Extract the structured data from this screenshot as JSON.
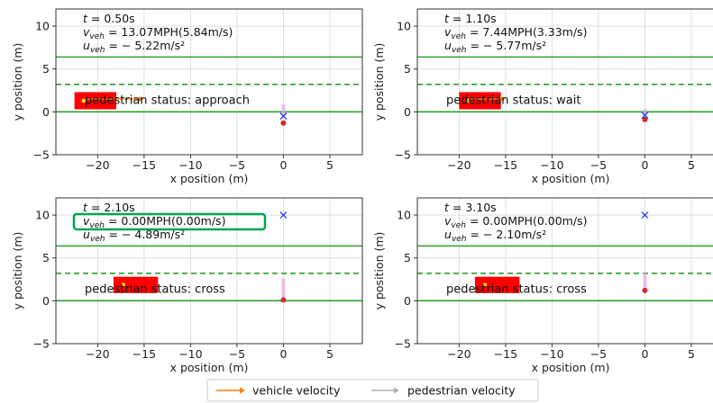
{
  "chart_data": [
    {
      "type": "scatter",
      "annotation": {
        "t": "t = 0.50s",
        "v": "v_veh = 13.07MPH(5.84m/s)",
        "u": "u_veh = − 5.22m/s²"
      },
      "status": "pedestrian status: approach",
      "xlabel": "x position (m)",
      "ylabel": "y position (m)",
      "xlim": [
        -24.5,
        8.5
      ],
      "ylim": [
        -5,
        12
      ],
      "xticks": [
        -20,
        -15,
        -10,
        -5,
        0,
        5
      ],
      "yticks": [
        -5,
        0,
        5,
        10
      ],
      "lane_lines_solid": [
        0,
        6.4
      ],
      "lane_line_dashed": 3.2,
      "vehicle": {
        "x_min": -22.5,
        "x_max": -18,
        "y_min": 0.3,
        "y_max": 2.3
      },
      "vehicle_velocity_arrow": {
        "x_start": -21.5,
        "x_end": -15,
        "y": 1.5
      },
      "pedestrian": {
        "x": 0,
        "y": -1.3
      },
      "pedestrian_goal": {
        "x": 0,
        "y": -0.5
      },
      "pedestrian_trail": {
        "x": 0,
        "y_from": 0.9,
        "y_to": -0.5
      },
      "highlight_velocity": false
    },
    {
      "type": "scatter",
      "annotation": {
        "t": "t = 1.10s",
        "v": "v_veh = 7.44MPH(3.33m/s)",
        "u": "u_veh = − 5.77m/s²"
      },
      "status": "pedestrian status: wait",
      "xlabel": "x position (m)",
      "ylabel": "y position (m)",
      "xlim": [
        -24.5,
        8.5
      ],
      "ylim": [
        -5,
        12
      ],
      "xticks": [
        -20,
        -15,
        -10,
        -5,
        0,
        5
      ],
      "yticks": [
        -5,
        0,
        5,
        10
      ],
      "lane_lines_solid": [
        0,
        6.4
      ],
      "lane_line_dashed": 3.2,
      "vehicle": {
        "x_min": -20,
        "x_max": -15.5,
        "y_min": 0.3,
        "y_max": 2.3
      },
      "vehicle_velocity_arrow": {
        "x_start": -19,
        "x_end": -15,
        "y": 1.5
      },
      "pedestrian": {
        "x": 0,
        "y": -0.9
      },
      "pedestrian_goal": {
        "x": 0,
        "y": -0.4
      },
      "pedestrian_trail": {
        "x": 0,
        "y_from": 0.3,
        "y_to": -0.5
      },
      "highlight_velocity": false
    },
    {
      "type": "scatter",
      "annotation": {
        "t": "t = 2.10s",
        "v": "v_veh = 0.00MPH(0.00m/s)",
        "u": "u_veh = − 4.89m/s²"
      },
      "status": "pedestrian status: cross",
      "xlabel": "x position (m)",
      "ylabel": "y position (m)",
      "xlim": [
        -24.5,
        8.5
      ],
      "ylim": [
        -5,
        12
      ],
      "xticks": [
        -20,
        -15,
        -10,
        -5,
        0,
        5
      ],
      "yticks": [
        -5,
        0,
        5,
        10
      ],
      "lane_lines_solid": [
        0,
        6.4
      ],
      "lane_line_dashed": 3.2,
      "vehicle": {
        "x_min": -18.3,
        "x_max": -13.5,
        "y_min": 0.9,
        "y_max": 2.8
      },
      "vehicle_velocity_arrow": null,
      "pedestrian": {
        "x": 0,
        "y": 0.1
      },
      "pedestrian_goal": {
        "x": 0,
        "y": 10
      },
      "pedestrian_trail": {
        "x": 0,
        "y_from": 0.2,
        "y_to": 2.6
      },
      "highlight_velocity": true
    },
    {
      "type": "scatter",
      "annotation": {
        "t": "t = 3.10s",
        "v": "v_veh = 0.00MPH(0.00m/s)",
        "u": "u_veh = − 2.10m/s²"
      },
      "status": "pedestrian status: cross",
      "xlabel": "x position (m)",
      "ylabel": "y position (m)",
      "xlim": [
        -24.5,
        8.5
      ],
      "ylim": [
        -5,
        12
      ],
      "xticks": [
        -20,
        -15,
        -10,
        -5,
        0,
        5
      ],
      "yticks": [
        -5,
        0,
        5,
        10
      ],
      "lane_lines_solid": [
        0,
        6.4
      ],
      "lane_line_dashed": 3.2,
      "vehicle": {
        "x_min": -18.3,
        "x_max": -13.5,
        "y_min": 0.9,
        "y_max": 2.8
      },
      "vehicle_velocity_arrow": null,
      "pedestrian": {
        "x": 0,
        "y": 1.2
      },
      "pedestrian_goal": {
        "x": 0,
        "y": 10
      },
      "pedestrian_trail": {
        "x": 0,
        "y_from": 1.3,
        "y_to": 3.4
      },
      "highlight_velocity": false
    }
  ],
  "legend": {
    "items": [
      {
        "label": "vehicle velocity",
        "color": "#ff7f0e"
      },
      {
        "label": "pedestrian velocity",
        "color": "#b0b0b0"
      }
    ]
  },
  "colors": {
    "lane": "#2ca02c",
    "vehicle": "#ff0000",
    "vehicle_dot": "#ffd700",
    "pedestrian": "#d62728",
    "goal": "#1f3fff",
    "trail": "#e8a6e8",
    "highlight_box": "#00a651"
  }
}
